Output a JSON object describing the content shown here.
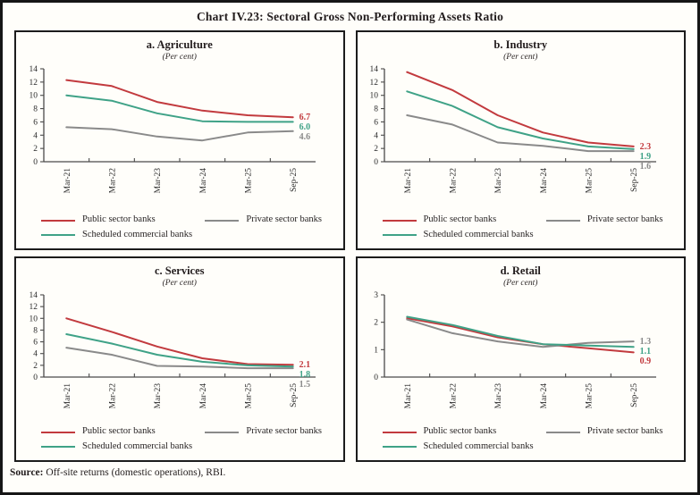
{
  "title": "Chart IV.23: Sectoral Gross Non-Performing Assets Ratio",
  "footer": {
    "source_label": "Source:",
    "source_text": " Off-site returns (domestic operations), RBI."
  },
  "colors": {
    "public_sector_banks": "#c23a3e",
    "private_sector_banks": "#8a8a8a",
    "scheduled_commercial_banks": "#3fa287",
    "axis": "#4a4a4a",
    "tick_text": "#2a2a2a",
    "border": "#1c1c1c"
  },
  "chart_data": [
    {
      "type": "line",
      "title": "a. Agriculture",
      "subtitle": "(Per cent)",
      "xlabel": "",
      "ylabel": "",
      "categories": [
        "Mar-21",
        "Mar-22",
        "Mar-23",
        "Mar-24",
        "Mar-25",
        "Sep-25"
      ],
      "ylim": [
        0,
        14
      ],
      "ytick_step": 2,
      "grid": false,
      "legend_position": "bottom",
      "series": [
        {
          "name": "Public sector banks",
          "color": "#c23a3e",
          "values": [
            12.3,
            11.4,
            9.0,
            7.7,
            7.0,
            6.7
          ],
          "end_label": "6.7"
        },
        {
          "name": "Private sector banks",
          "color": "#8a8a8a",
          "values": [
            5.2,
            4.9,
            3.8,
            3.2,
            4.4,
            4.6
          ],
          "end_label": "4.6"
        },
        {
          "name": "Scheduled commercial banks",
          "color": "#3fa287",
          "values": [
            10.0,
            9.2,
            7.3,
            6.1,
            6.0,
            6.0
          ],
          "end_label": "6.0"
        }
      ]
    },
    {
      "type": "line",
      "title": "b. Industry",
      "subtitle": "(Per cent)",
      "xlabel": "",
      "ylabel": "",
      "categories": [
        "Mar-21",
        "Mar-22",
        "Mar-23",
        "Mar-24",
        "Mar-25",
        "Sep-25"
      ],
      "ylim": [
        0,
        14
      ],
      "ytick_step": 2,
      "grid": false,
      "legend_position": "bottom",
      "series": [
        {
          "name": "Public sector banks",
          "color": "#c23a3e",
          "values": [
            13.5,
            10.8,
            7.0,
            4.4,
            2.9,
            2.3
          ],
          "end_label": "2.3"
        },
        {
          "name": "Private sector banks",
          "color": "#8a8a8a",
          "values": [
            7.0,
            5.6,
            2.9,
            2.4,
            1.6,
            1.6
          ],
          "end_label": "1.6"
        },
        {
          "name": "Scheduled commercial banks",
          "color": "#3fa287",
          "values": [
            10.6,
            8.4,
            5.2,
            3.5,
            2.3,
            1.9
          ],
          "end_label": "1.9"
        }
      ]
    },
    {
      "type": "line",
      "title": "c. Services",
      "subtitle": "(Per cent)",
      "xlabel": "",
      "ylabel": "",
      "categories": [
        "Mar-21",
        "Mar-22",
        "Mar-23",
        "Mar-24",
        "Mar-25",
        "Sep-25"
      ],
      "ylim": [
        0,
        14
      ],
      "ytick_step": 2,
      "grid": false,
      "legend_position": "bottom",
      "series": [
        {
          "name": "Public sector banks",
          "color": "#c23a3e",
          "values": [
            10.0,
            7.7,
            5.2,
            3.2,
            2.2,
            2.1
          ],
          "end_label": "2.1"
        },
        {
          "name": "Private sector banks",
          "color": "#8a8a8a",
          "values": [
            5.0,
            3.8,
            1.9,
            1.8,
            1.5,
            1.5
          ],
          "end_label": "1.5"
        },
        {
          "name": "Scheduled commercial banks",
          "color": "#3fa287",
          "values": [
            7.3,
            5.7,
            3.8,
            2.6,
            2.0,
            1.8
          ],
          "end_label": "1.8"
        }
      ]
    },
    {
      "type": "line",
      "title": "d. Retail",
      "subtitle": "(Per cent)",
      "xlabel": "",
      "ylabel": "",
      "categories": [
        "Mar-21",
        "Mar-22",
        "Mar-23",
        "Mar-24",
        "Mar-25",
        "Sep-25"
      ],
      "ylim": [
        0,
        3
      ],
      "ytick_step": 1,
      "grid": false,
      "legend_position": "bottom",
      "series": [
        {
          "name": "Public sector banks",
          "color": "#c23a3e",
          "values": [
            2.15,
            1.85,
            1.45,
            1.2,
            1.05,
            0.9
          ],
          "end_label": "0.9"
        },
        {
          "name": "Private sector banks",
          "color": "#8a8a8a",
          "values": [
            2.1,
            1.6,
            1.3,
            1.1,
            1.25,
            1.3
          ],
          "end_label": "1.3"
        },
        {
          "name": "Scheduled commercial banks",
          "color": "#3fa287",
          "values": [
            2.2,
            1.9,
            1.5,
            1.2,
            1.15,
            1.1
          ],
          "end_label": "1.1"
        }
      ]
    }
  ]
}
